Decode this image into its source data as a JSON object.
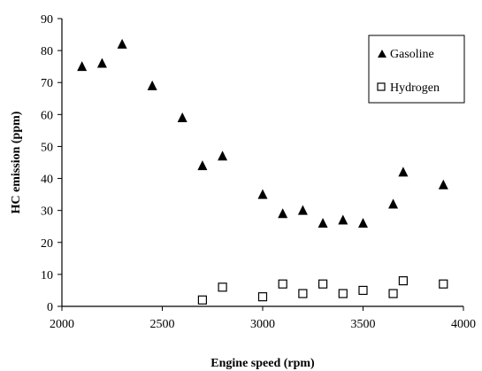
{
  "chart_data": {
    "type": "scatter",
    "xlabel": "Engine speed (rpm)",
    "ylabel": "HC emission (ppm)",
    "xlim": [
      2000,
      4000
    ],
    "ylim": [
      0,
      90
    ],
    "x_ticks": [
      "2000",
      "2500",
      "3000",
      "3500",
      "4000"
    ],
    "y_ticks": [
      "0",
      "10",
      "20",
      "30",
      "40",
      "50",
      "60",
      "70",
      "80",
      "90"
    ],
    "grid": false,
    "legend_position": "top-right",
    "series": [
      {
        "name": "Gasoline",
        "marker": "triangle",
        "points": [
          [
            2100,
            75
          ],
          [
            2200,
            76
          ],
          [
            2300,
            82
          ],
          [
            2450,
            69
          ],
          [
            2600,
            59
          ],
          [
            2700,
            44
          ],
          [
            2800,
            47
          ],
          [
            3000,
            35
          ],
          [
            3100,
            29
          ],
          [
            3200,
            30
          ],
          [
            3300,
            26
          ],
          [
            3400,
            27
          ],
          [
            3500,
            26
          ],
          [
            3650,
            32
          ],
          [
            3700,
            42
          ],
          [
            3900,
            38
          ]
        ]
      },
      {
        "name": "Hydrogen",
        "marker": "square",
        "points": [
          [
            2700,
            2
          ],
          [
            2800,
            6
          ],
          [
            3000,
            3
          ],
          [
            3100,
            7
          ],
          [
            3200,
            4
          ],
          [
            3300,
            7
          ],
          [
            3400,
            4
          ],
          [
            3500,
            5
          ],
          [
            3650,
            4
          ],
          [
            3700,
            8
          ],
          [
            3900,
            7
          ]
        ]
      }
    ]
  }
}
